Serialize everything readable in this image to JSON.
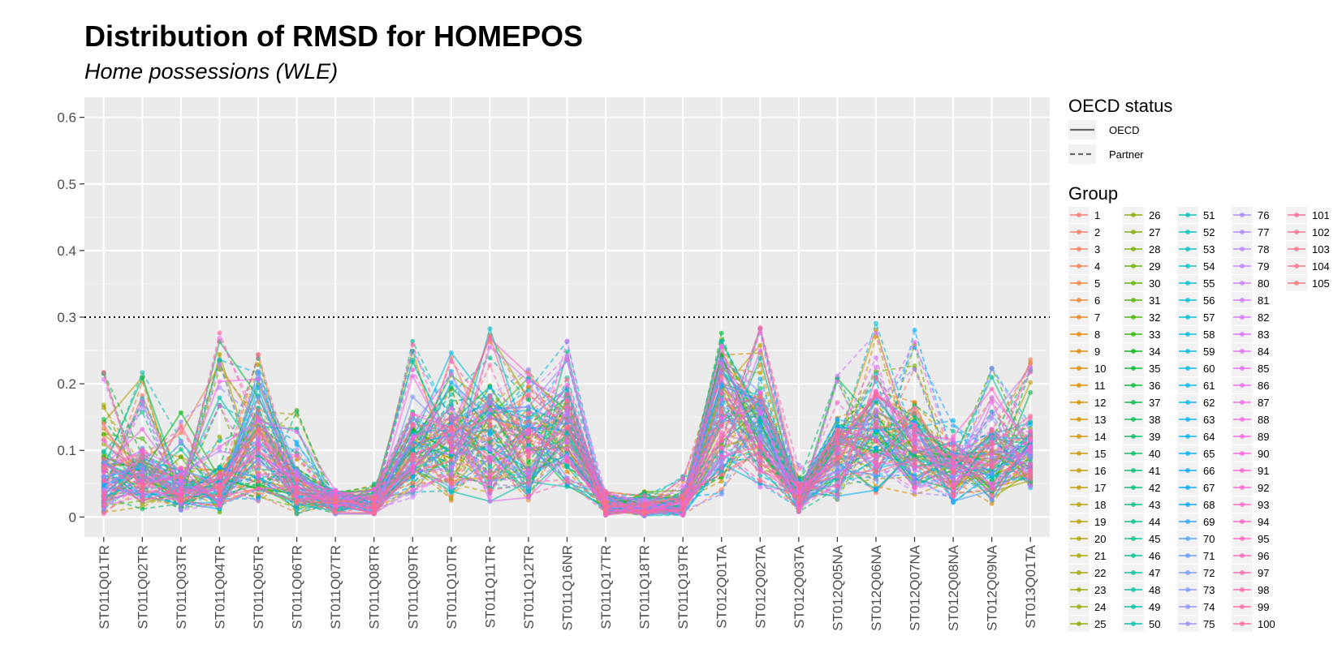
{
  "chart_data": {
    "type": "line",
    "title": "Distribution of RMSD for HOMEPOS",
    "subtitle": "Home possessions (WLE)",
    "xlabel": "",
    "ylabel": "",
    "ylim": [
      -0.03,
      0.63
    ],
    "y_ticks": [
      0,
      0.1,
      0.2,
      0.3,
      0.4,
      0.5,
      0.6
    ],
    "y_tick_labels": [
      "0",
      "0.1",
      "0.2",
      "0.3",
      "0.4",
      "0.5",
      "0.6"
    ],
    "reference_line": {
      "y": 0.3,
      "style": "dotted"
    },
    "grid": true,
    "categories": [
      "ST011Q01TR",
      "ST011Q02TR",
      "ST011Q03TR",
      "ST011Q04TR",
      "ST011Q05TR",
      "ST011Q06TR",
      "ST011Q07TR",
      "ST011Q08TR",
      "ST011Q09TR",
      "ST011Q10TR",
      "ST011Q11TR",
      "ST011Q12TR",
      "ST011Q16NR",
      "ST011Q17TR",
      "ST011Q18TR",
      "ST011Q19TR",
      "ST012Q01TA",
      "ST012Q02TA",
      "ST012Q03TA",
      "ST012Q05NA",
      "ST012Q06NA",
      "ST012Q07NA",
      "ST012Q08NA",
      "ST012Q09NA",
      "ST013Q01TA"
    ],
    "item_profile": {
      "median": [
        0.05,
        0.06,
        0.04,
        0.04,
        0.1,
        0.04,
        0.02,
        0.02,
        0.09,
        0.1,
        0.11,
        0.1,
        0.12,
        0.015,
        0.015,
        0.015,
        0.15,
        0.12,
        0.03,
        0.09,
        0.12,
        0.1,
        0.07,
        0.08,
        0.09
      ],
      "max": [
        0.22,
        0.24,
        0.16,
        0.28,
        0.26,
        0.18,
        0.04,
        0.05,
        0.27,
        0.26,
        0.3,
        0.25,
        0.27,
        0.04,
        0.04,
        0.065,
        0.29,
        0.29,
        0.08,
        0.22,
        0.3,
        0.3,
        0.15,
        0.23,
        0.24
      ],
      "min": [
        0.005,
        0.01,
        0.01,
        0.005,
        0.01,
        0.005,
        0.005,
        0.005,
        0.015,
        0.02,
        0.01,
        0.01,
        0.03,
        0.003,
        0.002,
        0.003,
        0.02,
        0.04,
        0.008,
        0.02,
        0.02,
        0.03,
        0.02,
        0.02,
        0.04
      ]
    },
    "legend": {
      "position": "right",
      "linetype_title": "OECD status",
      "linetype_items": [
        {
          "label": "OECD",
          "dash": "solid"
        },
        {
          "label": "Partner",
          "dash": "dashed"
        }
      ],
      "group_title": "Group",
      "group_labels": [
        "1",
        "2",
        "3",
        "4",
        "5",
        "6",
        "7",
        "8",
        "9",
        "10",
        "11",
        "12",
        "13",
        "14",
        "15",
        "16",
        "17",
        "18",
        "19",
        "20",
        "21",
        "22",
        "23",
        "24",
        "25",
        "26",
        "27",
        "28",
        "29",
        "30",
        "31",
        "32",
        "33",
        "34",
        "35",
        "36",
        "37",
        "38",
        "39",
        "40",
        "41",
        "42",
        "43",
        "44",
        "45",
        "46",
        "47",
        "48",
        "49",
        "50",
        "51",
        "52",
        "53",
        "54",
        "55",
        "56",
        "57",
        "58",
        "59",
        "60",
        "61",
        "62",
        "63",
        "64",
        "65",
        "66",
        "67",
        "68",
        "69",
        "70",
        "71",
        "72",
        "73",
        "74",
        "75",
        "76",
        "77",
        "78",
        "79",
        "80",
        "81",
        "82",
        "83",
        "84",
        "85",
        "86",
        "87",
        "88",
        "89",
        "90",
        "91",
        "92",
        "93",
        "94",
        "95",
        "96",
        "97",
        "98",
        "99",
        "100",
        "101",
        "102",
        "103",
        "104",
        "105"
      ]
    }
  }
}
